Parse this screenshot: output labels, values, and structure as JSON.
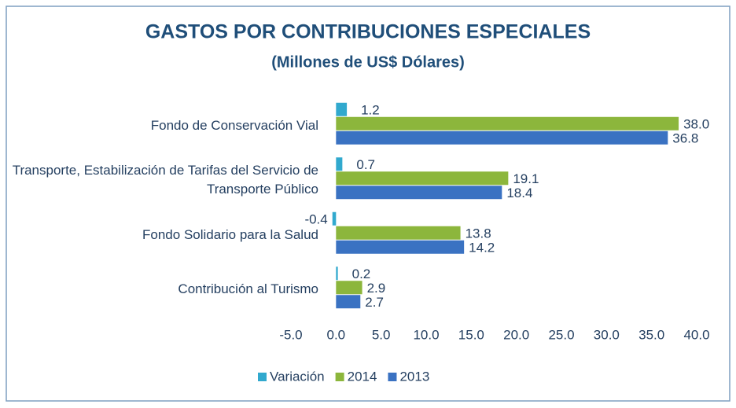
{
  "chart_data": {
    "type": "bar",
    "orientation": "horizontal",
    "title": "GASTOS POR CONTRIBUCIONES ESPECIALES",
    "subtitle": "(Millones de US$ Dólares)",
    "categories": [
      "Fondo de Conservación Vial",
      "Transporte, Estabilización de Tarifas del Servicio de Transporte Público",
      "Fondo Solidario para la Salud",
      "Contribución al Turismo"
    ],
    "series": [
      {
        "name": "Variación",
        "color": "#31A9CE",
        "values": [
          1.2,
          0.7,
          -0.4,
          0.2
        ],
        "value_labels": [
          "1.2",
          "0.7",
          "-0.4",
          "0.2"
        ]
      },
      {
        "name": "2014",
        "color": "#8CB63C",
        "values": [
          38.0,
          19.1,
          13.8,
          2.9
        ],
        "value_labels": [
          "38.0",
          "19.1",
          "13.8",
          "2.9"
        ]
      },
      {
        "name": "2013",
        "color": "#3A72C2",
        "values": [
          36.8,
          18.4,
          14.2,
          2.7
        ],
        "value_labels": [
          "36.8",
          "18.4",
          "14.2",
          "2.7"
        ]
      }
    ],
    "xlim": [
      -5,
      40
    ],
    "xticks": [
      {
        "value": -5,
        "label": "-5.0"
      },
      {
        "value": 0,
        "label": "0.0"
      },
      {
        "value": 5,
        "label": "5.0"
      },
      {
        "value": 10,
        "label": "10.0"
      },
      {
        "value": 15,
        "label": "15.0"
      },
      {
        "value": 20,
        "label": "20.0"
      },
      {
        "value": 25,
        "label": "25.0"
      },
      {
        "value": 30,
        "label": "30.0"
      },
      {
        "value": 35,
        "label": "35.0"
      },
      {
        "value": 40,
        "label": "40.0"
      }
    ],
    "legend": "bottom"
  }
}
